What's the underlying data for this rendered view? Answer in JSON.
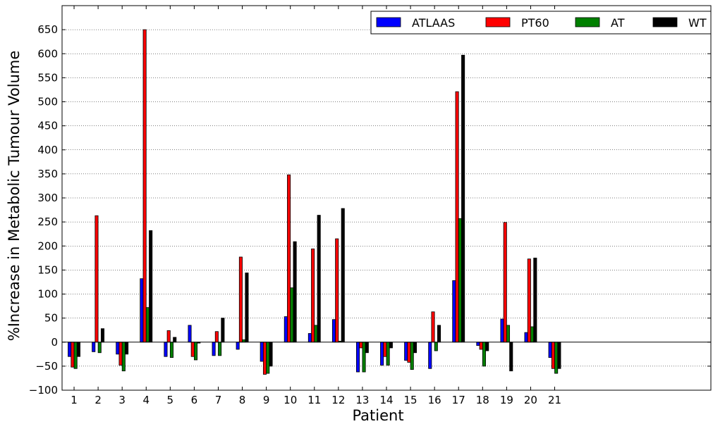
{
  "chart_data": {
    "type": "bar",
    "title": "",
    "xlabel": "Patient",
    "ylabel": "%Increase in Metabolic Tumour Volume",
    "categories": [
      "1",
      "2",
      "3",
      "4",
      "5",
      "6",
      "7",
      "8",
      "9",
      "10",
      "11",
      "12",
      "13",
      "14",
      "15",
      "16",
      "17",
      "18",
      "19",
      "20",
      "21"
    ],
    "xlim": [
      0.5,
      27.5
    ],
    "ylim": [
      -100,
      700
    ],
    "yticks": [
      -100,
      -50,
      0,
      50,
      100,
      150,
      200,
      250,
      300,
      350,
      400,
      450,
      500,
      550,
      600,
      650
    ],
    "grid": "horizontal dotted",
    "legend_position": "top-right",
    "series": [
      {
        "name": "ATLAAS",
        "color": "#0000ff",
        "values": [
          -30,
          -20,
          -25,
          132,
          -30,
          35,
          -28,
          -15,
          -40,
          53,
          18,
          47,
          -62,
          -48,
          -38,
          -55,
          128,
          -7,
          48,
          20,
          -32
        ]
      },
      {
        "name": "PT60",
        "color": "#ff0000",
        "values": [
          -52,
          263,
          -48,
          650,
          24,
          -30,
          22,
          177,
          -67,
          348,
          194,
          215,
          -12,
          -30,
          -42,
          63,
          521,
          -15,
          249,
          173,
          -55
        ]
      },
      {
        "name": "AT",
        "color": "#008000",
        "values": [
          -55,
          -22,
          -60,
          72,
          -32,
          -37,
          -28,
          5,
          -65,
          113,
          35,
          2,
          -62,
          -48,
          -57,
          -18,
          257,
          -50,
          35,
          32,
          -65
        ]
      },
      {
        "name": "WT",
        "color": "#000000",
        "values": [
          -30,
          28,
          -25,
          232,
          10,
          -2,
          50,
          144,
          -50,
          209,
          264,
          278,
          -22,
          -12,
          -22,
          35,
          597,
          -18,
          -60,
          175,
          -55
        ]
      }
    ]
  }
}
